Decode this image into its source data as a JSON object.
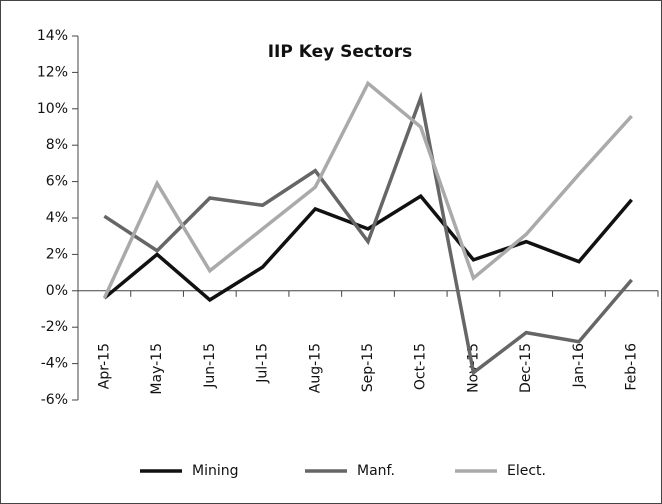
{
  "chart_data": {
    "type": "line",
    "title": "IIP Key Sectors",
    "categories": [
      "Apr-15",
      "May-15",
      "Jun-15",
      "Jul-15",
      "Aug-15",
      "Sep-15",
      "Oct-15",
      "Nov-15",
      "Dec-15",
      "Jan-16",
      "Feb-16"
    ],
    "series": [
      {
        "name": "Mining",
        "color": "#111111",
        "values": [
          -0.4,
          2.0,
          -0.5,
          1.3,
          4.5,
          3.4,
          5.2,
          1.7,
          2.7,
          1.6,
          5.0
        ]
      },
      {
        "name": "Manf.",
        "color": "#666666",
        "values": [
          4.1,
          2.2,
          5.1,
          4.7,
          6.6,
          2.7,
          10.6,
          -4.5,
          -2.3,
          -2.8,
          0.6
        ]
      },
      {
        "name": "Elect.",
        "color": "#aaaaaa",
        "values": [
          -0.4,
          5.9,
          1.1,
          3.4,
          5.7,
          11.4,
          9.0,
          0.7,
          3.1,
          6.4,
          9.6
        ]
      }
    ],
    "ylim": [
      -6,
      14
    ],
    "yticks": [
      {
        "value": -6,
        "label": "-6%"
      },
      {
        "value": -4,
        "label": "-4%"
      },
      {
        "value": -2,
        "label": "-2%"
      },
      {
        "value": 0,
        "label": "0%"
      },
      {
        "value": 2,
        "label": "2%"
      },
      {
        "value": 4,
        "label": "4%"
      },
      {
        "value": 6,
        "label": "6%"
      },
      {
        "value": 8,
        "label": "8%"
      },
      {
        "value": 10,
        "label": "10%"
      },
      {
        "value": 12,
        "label": "12%"
      },
      {
        "value": 14,
        "label": "14%"
      }
    ],
    "grid": false,
    "legend": "bottom"
  }
}
